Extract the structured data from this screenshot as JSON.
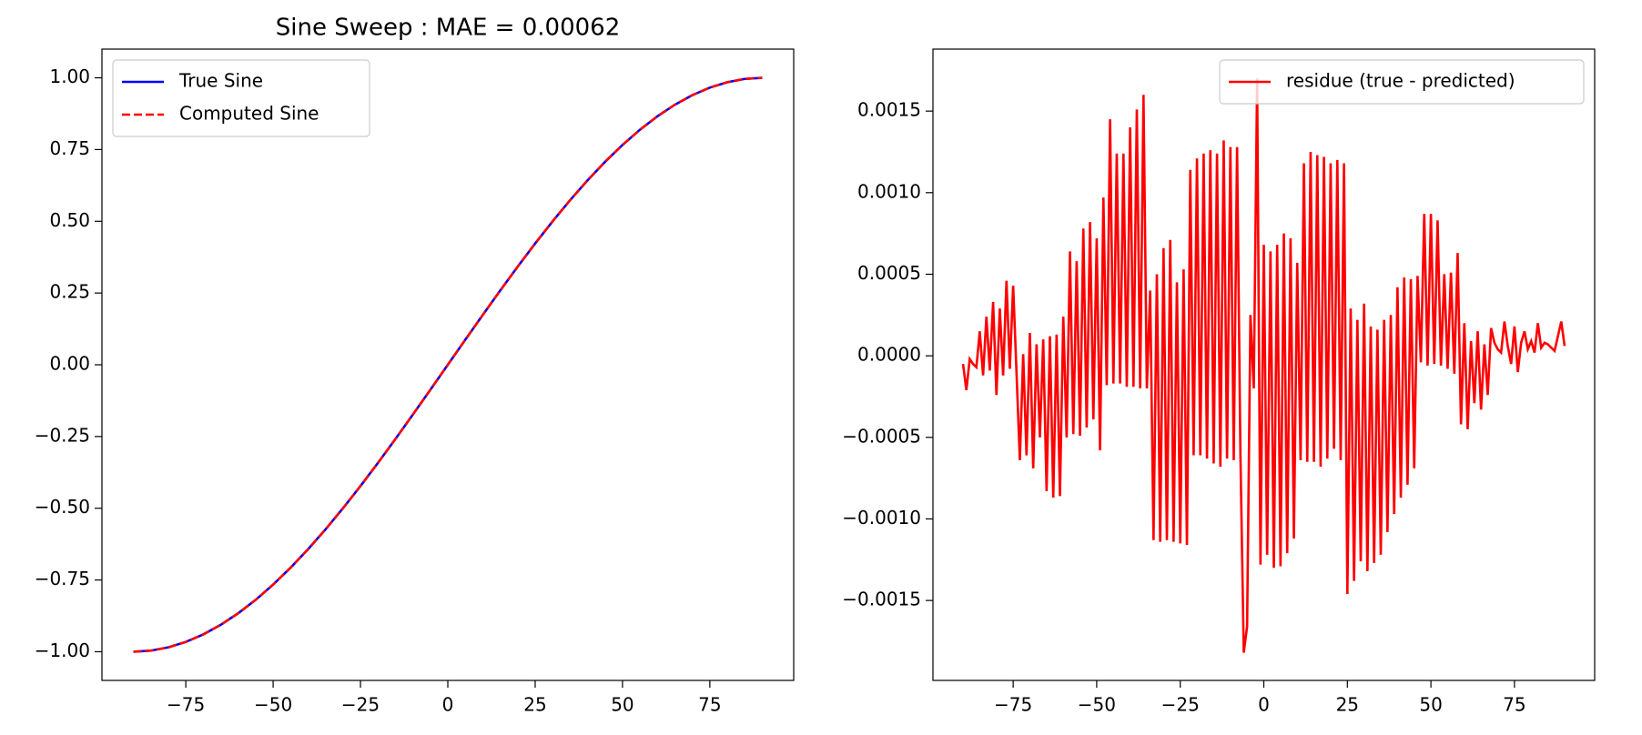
{
  "chart_data": [
    {
      "type": "line",
      "title": "Sine Sweep : MAE = 0.00062",
      "x": [
        -90,
        -85,
        -80,
        -75,
        -70,
        -65,
        -60,
        -55,
        -50,
        -45,
        -40,
        -35,
        -30,
        -25,
        -20,
        -15,
        -10,
        -5,
        0,
        5,
        10,
        15,
        20,
        25,
        30,
        35,
        40,
        45,
        50,
        55,
        60,
        65,
        70,
        75,
        80,
        85,
        90
      ],
      "series": [
        {
          "name": "True Sine",
          "color": "#0000ff",
          "linestyle": "solid",
          "values": [
            -1,
            -0.9962,
            -0.9848,
            -0.9659,
            -0.9397,
            -0.9063,
            -0.866,
            -0.8192,
            -0.766,
            -0.7071,
            -0.6428,
            -0.5736,
            -0.5,
            -0.4226,
            -0.342,
            -0.2588,
            -0.1736,
            -0.0872,
            0,
            0.0872,
            0.1736,
            0.2588,
            0.342,
            0.4226,
            0.5,
            0.5736,
            0.6428,
            0.7071,
            0.766,
            0.8192,
            0.866,
            0.9063,
            0.9397,
            0.9659,
            0.9848,
            0.9962,
            1
          ]
        },
        {
          "name": "Computed Sine",
          "color": "#ff0000",
          "linestyle": "dashed",
          "values": [
            -1,
            -0.9962,
            -0.9848,
            -0.9659,
            -0.9397,
            -0.9063,
            -0.866,
            -0.8192,
            -0.766,
            -0.7071,
            -0.6428,
            -0.5736,
            -0.5,
            -0.4226,
            -0.342,
            -0.2588,
            -0.1736,
            -0.0872,
            0,
            0.0872,
            0.1736,
            0.2588,
            0.342,
            0.4226,
            0.5,
            0.5736,
            0.6428,
            0.7071,
            0.766,
            0.8192,
            0.866,
            0.9063,
            0.9397,
            0.9659,
            0.9848,
            0.9962,
            1
          ]
        }
      ],
      "xlim": [
        -99,
        99
      ],
      "ylim": [
        -1.1,
        1.1
      ],
      "xticks": [
        {
          "value": -75,
          "label": "−75"
        },
        {
          "value": -50,
          "label": "−50"
        },
        {
          "value": -25,
          "label": "−25"
        },
        0,
        25,
        50,
        75
      ],
      "yticks": [
        {
          "value": -1,
          "label": "−1.00"
        },
        {
          "value": -0.75,
          "label": "−0.75"
        },
        {
          "value": -0.5,
          "label": "−0.50"
        },
        {
          "value": -0.25,
          "label": "−0.25"
        },
        {
          "value": 0,
          "label": "0.00"
        },
        {
          "value": 0.25,
          "label": "0.25"
        },
        {
          "value": 0.5,
          "label": "0.50"
        },
        {
          "value": 0.75,
          "label": "0.75"
        },
        {
          "value": 1,
          "label": "1.00"
        }
      ],
      "legend": "upper left"
    },
    {
      "type": "line",
      "x": [
        -90,
        -89,
        -88,
        -87,
        -86,
        -85,
        -84,
        -83,
        -82,
        -81,
        -80,
        -79,
        -78,
        -77,
        -76,
        -75,
        -74,
        -73,
        -72,
        -71,
        -70,
        -69,
        -68,
        -67,
        -66,
        -65,
        -64,
        -63,
        -62,
        -61,
        -60,
        -59,
        -58,
        -57,
        -56,
        -55,
        -54,
        -53,
        -52,
        -51,
        -50,
        -49,
        -48,
        -47,
        -46,
        -45,
        -44,
        -43,
        -42,
        -41,
        -40,
        -39,
        -38,
        -37,
        -36,
        -35,
        -34,
        -33,
        -32,
        -31,
        -30,
        -29,
        -28,
        -27,
        -26,
        -25,
        -24,
        -23,
        -22,
        -21,
        -20,
        -19,
        -18,
        -17,
        -16,
        -15,
        -14,
        -13,
        -12,
        -11,
        -10,
        -9,
        -8,
        -7,
        -6,
        -5,
        -4,
        -3,
        -2,
        -1,
        0,
        1,
        2,
        3,
        4,
        5,
        6,
        7,
        8,
        9,
        10,
        11,
        12,
        13,
        14,
        15,
        16,
        17,
        18,
        19,
        20,
        21,
        22,
        23,
        24,
        25,
        26,
        27,
        28,
        29,
        30,
        31,
        32,
        33,
        34,
        35,
        36,
        37,
        38,
        39,
        40,
        41,
        42,
        43,
        44,
        45,
        46,
        47,
        48,
        49,
        50,
        51,
        52,
        53,
        54,
        55,
        56,
        57,
        58,
        59,
        60,
        61,
        62,
        63,
        64,
        65,
        66,
        67,
        68,
        69,
        70,
        71,
        72,
        73,
        74,
        75,
        76,
        77,
        78,
        79,
        80,
        81,
        82,
        83,
        84,
        85,
        86,
        87,
        88,
        89,
        90
      ],
      "series": [
        {
          "name": "residue (true - predicted)",
          "color": "#ff0000",
          "linestyle": "solid",
          "values": [
            -5e-05,
            -0.00021,
            -2e-05,
            -5e-05,
            -7e-05,
            0.00015,
            -0.00012,
            0.00024,
            -9e-05,
            0.00033,
            -0.00024,
            0.00029,
            -0.00012,
            0.00046,
            -8e-05,
            0.00043,
            -0.0001,
            -0.00064,
            1e-05,
            -0.00061,
            0.00014,
            -0.00069,
            7e-05,
            -0.0005,
            0.0001,
            -0.00083,
            0.00012,
            -0.00087,
            0.00013,
            -0.00086,
            0.00024,
            -0.0005,
            0.00064,
            -0.00048,
            0.00058,
            -0.00049,
            0.00078,
            -0.00044,
            0.00082,
            -0.00039,
            0.00072,
            -0.00058,
            0.00097,
            -0.00018,
            0.00145,
            -0.00017,
            0.00124,
            -0.00017,
            0.00124,
            -0.00019,
            0.0014,
            -0.00019,
            0.00151,
            -0.0002,
            0.0016,
            -0.0002,
            0.0004,
            -0.00113,
            0.0005,
            -0.00114,
            0.00066,
            -0.00113,
            0.00071,
            -0.00114,
            0.00045,
            -0.00115,
            0.00053,
            -0.00116,
            0.00114,
            -0.00061,
            0.00121,
            -0.00061,
            0.00124,
            -0.00063,
            0.00126,
            -0.00066,
            0.00124,
            -0.00068,
            0.00132,
            -0.00063,
            0.00128,
            -0.00064,
            0.00128,
            -0.0006,
            -0.00182,
            -0.00166,
            0.00025,
            -0.0002,
            0.0017,
            -0.00128,
            0.00068,
            -0.00122,
            0.00064,
            -0.0013,
            0.00068,
            -0.00129,
            0.00075,
            -0.00121,
            0.00072,
            -0.00112,
            0.00057,
            -0.00064,
            0.00118,
            -0.00065,
            0.00125,
            -0.00065,
            0.00123,
            -0.00068,
            0.00122,
            -0.00063,
            0.00118,
            -0.00057,
            0.0012,
            -0.00064,
            0.00118,
            -0.00146,
            0.00029,
            -0.00138,
            0.00022,
            -0.00126,
            0.00032,
            -0.00132,
            0.00018,
            -0.00127,
            0.00016,
            -0.00122,
            0.00022,
            -0.00108,
            0.00025,
            -0.00097,
            0.00042,
            -0.00087,
            0.00048,
            -0.00079,
            0.00047,
            -0.00069,
            0.00049,
            -4e-05,
            0.00087,
            -6e-05,
            0.00087,
            -5e-05,
            0.00083,
            -6e-05,
            0.0005,
            -8e-05,
            0.00051,
            -0.00011,
            0.00063,
            -0.00042,
            0.0002,
            -0.00045,
            9e-05,
            -0.00029,
            0.00015,
            -0.00033,
            7e-05,
            -0.00024,
            0.00017,
            8e-05,
            4e-05,
            2e-05,
            0.00021,
            6e-05,
            -5e-05,
            0.00018,
            -0.0001,
            8e-05,
            0.00015,
            4e-05,
            9e-05,
            2e-05,
            0.0002,
            5e-05,
            8e-05,
            7e-05,
            5e-05,
            3e-05,
            0.00012,
            0.00021,
            6e-05
          ]
        }
      ],
      "xlim": [
        -99,
        99
      ],
      "ylim": [
        -0.00199,
        0.00188
      ],
      "xticks": [
        {
          "value": -75,
          "label": "−75"
        },
        {
          "value": -50,
          "label": "−50"
        },
        {
          "value": -25,
          "label": "−25"
        },
        0,
        25,
        50,
        75
      ],
      "yticks": [
        {
          "value": -0.0015,
          "label": "−0.0015"
        },
        {
          "value": -0.001,
          "label": "−0.0010"
        },
        {
          "value": -0.0005,
          "label": "−0.0005"
        },
        {
          "value": 0,
          "label": "0.0000"
        },
        {
          "value": 0.0005,
          "label": "0.0005"
        },
        {
          "value": 0.001,
          "label": "0.0010"
        },
        {
          "value": 0.0015,
          "label": "0.0015"
        }
      ],
      "legend": "upper right"
    }
  ]
}
